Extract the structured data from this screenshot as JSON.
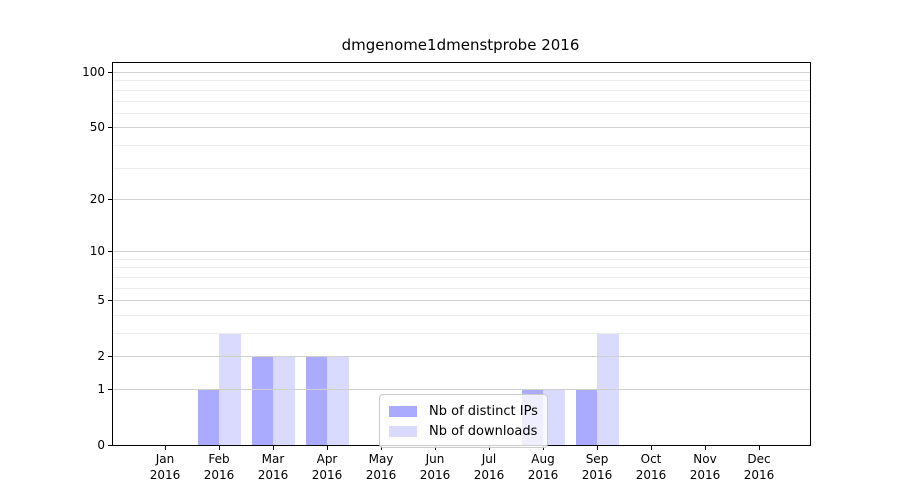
{
  "title": "dmgenome1dmenstprobe 2016",
  "colors": {
    "distinct_ips": "#aaaaff",
    "downloads": "#dadaff",
    "grid_major": "#d0d0d0",
    "grid_minor": "#ececec",
    "axis_spine": "#000000",
    "legend_border": "#cccccc",
    "text": "#000000"
  },
  "legend": {
    "items": [
      {
        "label": "Nb of distinct IPs",
        "color_key": "distinct_ips"
      },
      {
        "label": "Nb of downloads",
        "color_key": "downloads"
      }
    ]
  },
  "x_axis": {
    "months": [
      "Jan",
      "Feb",
      "Mar",
      "Apr",
      "May",
      "Jun",
      "Jul",
      "Aug",
      "Sep",
      "Oct",
      "Nov",
      "Dec"
    ],
    "year": "2016"
  },
  "y_axis": {
    "tick_labels": [
      0,
      1,
      2,
      5,
      10,
      20,
      50,
      100
    ]
  },
  "chart_data": {
    "type": "bar",
    "title": "dmgenome1dmenstprobe 2016",
    "categories": [
      "Jan 2016",
      "Feb 2016",
      "Mar 2016",
      "Apr 2016",
      "May 2016",
      "Jun 2016",
      "Jul 2016",
      "Aug 2016",
      "Sep 2016",
      "Oct 2016",
      "Nov 2016",
      "Dec 2016"
    ],
    "series": [
      {
        "name": "Nb of distinct IPs",
        "color": "#aaaaff",
        "values": [
          0,
          1,
          2,
          2,
          0,
          0,
          0,
          1,
          1,
          0,
          0,
          0
        ]
      },
      {
        "name": "Nb of downloads",
        "color": "#dadaff",
        "values": [
          0,
          3,
          2,
          2,
          0,
          0,
          0,
          1,
          3,
          0,
          0,
          0
        ]
      }
    ],
    "yscale": "log1p",
    "yticks_major": [
      1,
      2,
      5,
      10,
      20,
      50,
      100
    ],
    "yticks_minor": [
      3,
      4,
      6,
      7,
      8,
      9,
      30,
      40,
      60,
      70,
      80,
      90
    ],
    "ylim": [
      0,
      112
    ],
    "grid": true,
    "legend_position": "lower center"
  }
}
